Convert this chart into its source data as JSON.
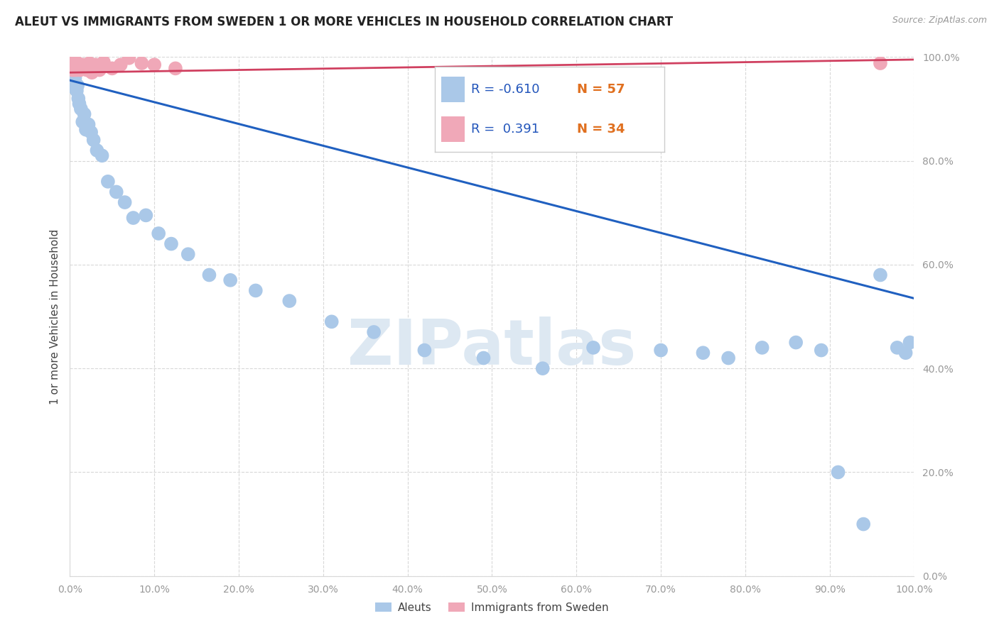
{
  "title": "ALEUT VS IMMIGRANTS FROM SWEDEN 1 OR MORE VEHICLES IN HOUSEHOLD CORRELATION CHART",
  "source": "Source: ZipAtlas.com",
  "ylabel": "1 or more Vehicles in Household",
  "legend_label1": "Aleuts",
  "legend_label2": "Immigrants from Sweden",
  "R1": -0.61,
  "N1": 57,
  "R2": 0.391,
  "N2": 34,
  "aleuts_x": [
    0.001,
    0.001,
    0.002,
    0.002,
    0.002,
    0.003,
    0.003,
    0.004,
    0.004,
    0.005,
    0.005,
    0.006,
    0.006,
    0.007,
    0.008,
    0.009,
    0.01,
    0.011,
    0.013,
    0.015,
    0.017,
    0.019,
    0.022,
    0.025,
    0.028,
    0.032,
    0.038,
    0.045,
    0.055,
    0.065,
    0.075,
    0.09,
    0.105,
    0.12,
    0.14,
    0.165,
    0.19,
    0.22,
    0.26,
    0.31,
    0.36,
    0.42,
    0.49,
    0.56,
    0.62,
    0.7,
    0.75,
    0.78,
    0.82,
    0.86,
    0.89,
    0.91,
    0.94,
    0.96,
    0.98,
    0.99,
    0.995
  ],
  "aleuts_y": [
    0.985,
    0.975,
    0.99,
    0.968,
    0.955,
    0.978,
    0.96,
    0.97,
    0.952,
    0.965,
    0.945,
    0.96,
    0.94,
    0.938,
    0.935,
    0.945,
    0.92,
    0.91,
    0.9,
    0.875,
    0.89,
    0.86,
    0.87,
    0.855,
    0.84,
    0.82,
    0.81,
    0.76,
    0.74,
    0.72,
    0.69,
    0.695,
    0.66,
    0.64,
    0.62,
    0.58,
    0.57,
    0.55,
    0.53,
    0.49,
    0.47,
    0.435,
    0.42,
    0.4,
    0.44,
    0.435,
    0.43,
    0.42,
    0.44,
    0.45,
    0.435,
    0.2,
    0.1,
    0.58,
    0.44,
    0.43,
    0.45
  ],
  "sweden_x": [
    0.001,
    0.001,
    0.002,
    0.002,
    0.003,
    0.003,
    0.003,
    0.004,
    0.004,
    0.005,
    0.005,
    0.006,
    0.006,
    0.007,
    0.008,
    0.009,
    0.01,
    0.011,
    0.012,
    0.015,
    0.018,
    0.02,
    0.023,
    0.026,
    0.03,
    0.035,
    0.04,
    0.05,
    0.06,
    0.07,
    0.085,
    0.1,
    0.125,
    0.96
  ],
  "sweden_y": [
    0.992,
    0.98,
    0.99,
    0.985,
    0.998,
    0.975,
    0.988,
    0.992,
    0.978,
    0.985,
    0.975,
    0.99,
    0.98,
    0.985,
    0.975,
    0.988,
    0.98,
    0.985,
    0.975,
    0.985,
    0.978,
    0.975,
    0.988,
    0.97,
    0.985,
    0.975,
    0.99,
    0.978,
    0.985,
    0.998,
    0.988,
    0.985,
    0.978,
    0.988
  ],
  "blue_line_x": [
    0.0,
    1.0
  ],
  "blue_line_y": [
    0.955,
    0.535
  ],
  "pink_line_x": [
    0.0,
    1.0
  ],
  "pink_line_y": [
    0.97,
    0.995
  ],
  "xlim": [
    0.0,
    1.0
  ],
  "ylim": [
    0.0,
    1.0
  ],
  "xticks": [
    0.0,
    0.1,
    0.2,
    0.3,
    0.4,
    0.5,
    0.6,
    0.7,
    0.8,
    0.9,
    1.0
  ],
  "yticks": [
    0.0,
    0.2,
    0.4,
    0.6,
    0.8,
    1.0
  ],
  "blue_color": "#aac8e8",
  "pink_color": "#f0a8b8",
  "line_blue": "#2060c0",
  "line_pink": "#d04060",
  "watermark_text": "ZIPatlas",
  "watermark_color": "#dde8f2",
  "background_color": "#ffffff",
  "grid_color": "#d8d8d8",
  "tick_color": "#999999",
  "title_color": "#222222",
  "source_color": "#999999",
  "legend_r_color": "#2255bb",
  "legend_n_color": "#e07020",
  "legend_box_edge": "#cccccc"
}
